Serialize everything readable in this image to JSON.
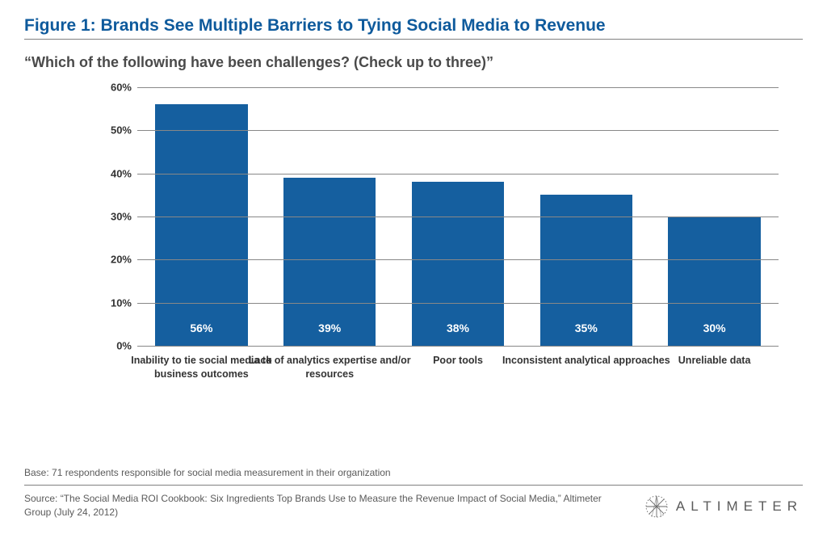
{
  "title": "Figure 1: Brands See Multiple Barriers to Tying Social Media to Revenue",
  "subtitle": "“Which of the following have been challenges? (Check up to three)”",
  "chart": {
    "type": "bar",
    "ymax": 60,
    "ytick_step": 10,
    "ytick_suffix": "%",
    "axis_color": "#888888",
    "bar_color": "#155f9f",
    "bar_label_color": "#ffffff",
    "tick_font_color": "#333333",
    "background_color": "#ffffff",
    "bars": [
      {
        "category": "Inability to tie social media to business outcomes",
        "value": 56,
        "label": "56%"
      },
      {
        "category": "Lack of analytics expertise and/or resources",
        "value": 39,
        "label": "39%"
      },
      {
        "category": "Poor tools",
        "value": 38,
        "label": "38%"
      },
      {
        "category": "Inconsistent analytical approaches",
        "value": 35,
        "label": "35%"
      },
      {
        "category": "Unreliable data",
        "value": 30,
        "label": "30%"
      }
    ]
  },
  "base_note": "Base: 71 respondents responsible for social media measurement in their organization",
  "source": "Source: “The Social Media ROI Cookbook: Six Ingredients Top Brands Use to Measure the Revenue Impact of Social Media,” Altimeter Group (July 24, 2012)",
  "logo_text": "ALTIMETER"
}
